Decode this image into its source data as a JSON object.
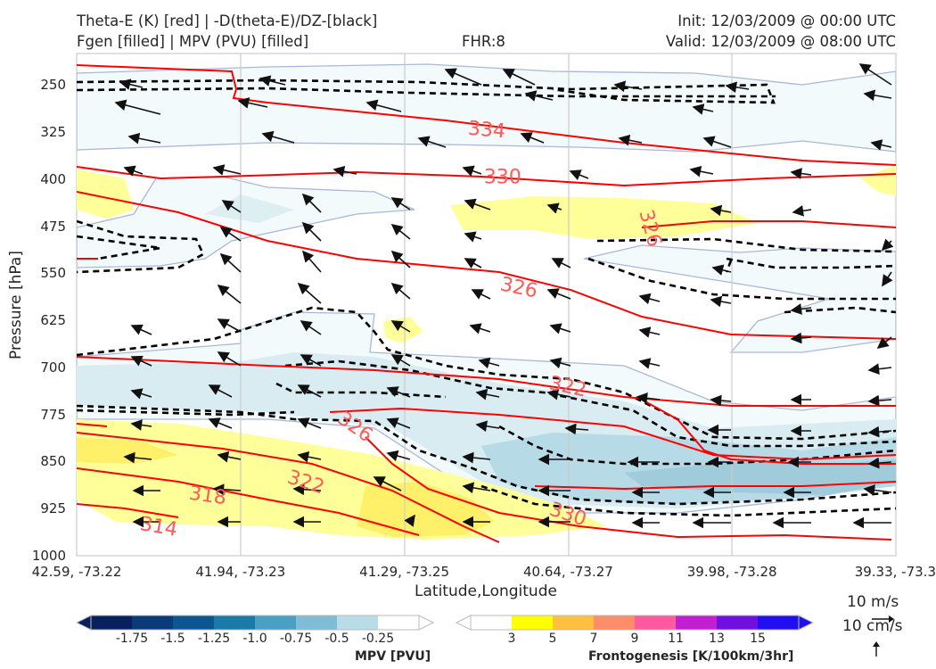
{
  "header": {
    "title_line1_left": "Theta-E (K) [red] | -D(theta-E)/DZ-[black]",
    "title_line2_left": "Fgen [filled] | MPV (PVU) [filled]",
    "fhr": "FHR:8",
    "init": "Init: 12/03/2009 @ 00:00 UTC",
    "valid": "Valid: 12/03/2009 @ 08:00 UTC"
  },
  "chart_data": {
    "type": "cross-section",
    "xlabel": "Latitude,Longitude",
    "ylabel": "Pressure [hPa]",
    "x_ticks": [
      "42.59, -73.22",
      "41.94, -73.23",
      "41.29, -73.25",
      "40.64, -73.27",
      "39.98, -73.28",
      "39.33, -73.3"
    ],
    "y_ticks": [
      250,
      325,
      400,
      475,
      550,
      625,
      700,
      775,
      850,
      925,
      1000
    ],
    "ylim": [
      200,
      1000
    ],
    "y_inverted": true,
    "grid": true,
    "theta_e_labels": [
      {
        "value": "334",
        "x_index": 2.5,
        "p": 322
      },
      {
        "value": "330",
        "x_index": 2.6,
        "p": 398
      },
      {
        "value": "326",
        "x_index": 3.5,
        "p": 478
      },
      {
        "value": "326",
        "x_index": 2.7,
        "p": 574
      },
      {
        "value": "322",
        "x_index": 3.0,
        "p": 731
      },
      {
        "value": "326",
        "x_index": 1.7,
        "p": 796
      },
      {
        "value": "322",
        "x_index": 1.4,
        "p": 883
      },
      {
        "value": "330",
        "x_index": 3.0,
        "p": 935
      },
      {
        "value": "318",
        "x_index": 0.8,
        "p": 905
      },
      {
        "value": "314",
        "x_index": 0.5,
        "p": 955
      }
    ],
    "series_colors": {
      "theta_e": "#ff0000",
      "stability": "#000000",
      "fgen": "#ffff99",
      "mpv": "#add8e6"
    }
  },
  "mpv_colorbar": {
    "label": "MPV [PVU]",
    "ticks": [
      "-1.75",
      "-1.5",
      "-1.25",
      "-1.0",
      "-0.75",
      "-0.5",
      "-0.25"
    ],
    "colors": [
      "#08205c",
      "#0a3a78",
      "#0b5590",
      "#1a7aa8",
      "#4a9fc4",
      "#7fbdd6",
      "#b8dce8",
      "#ffffff"
    ]
  },
  "fgen_colorbar": {
    "label": "Frontogenesis [K/100km/3hr]",
    "ticks": [
      "3",
      "5",
      "7",
      "9",
      "11",
      "13",
      "15"
    ],
    "colors": [
      "#ffffff",
      "#ffff00",
      "#ffc040",
      "#ff8c6a",
      "#ff5aa0",
      "#c020d0",
      "#7010e0",
      "#2010f0"
    ]
  },
  "wind_key": {
    "horizontal": "10 m/s",
    "vertical": "10 cm/s"
  }
}
